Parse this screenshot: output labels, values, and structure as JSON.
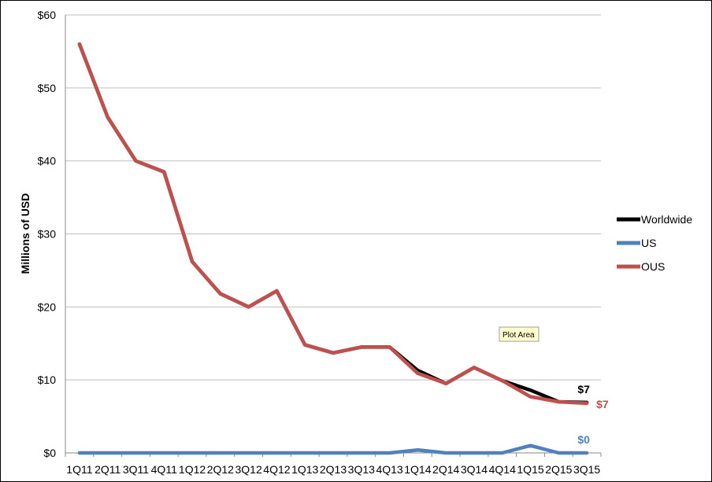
{
  "chart_data": {
    "type": "line",
    "ylabel": "Millions of USD",
    "xlabel": "",
    "ylim": [
      0,
      60
    ],
    "yticks": [
      "$0",
      "$10",
      "$20",
      "$30",
      "$40",
      "$50",
      "$60"
    ],
    "ytick_values": [
      0,
      10,
      20,
      30,
      40,
      50,
      60
    ],
    "grid": true,
    "legend_position": "right",
    "categories": [
      "1Q11",
      "2Q11",
      "3Q11",
      "4Q11",
      "1Q12",
      "2Q12",
      "3Q12",
      "4Q12",
      "1Q13",
      "2Q13",
      "3Q13",
      "4Q13",
      "1Q14",
      "2Q14",
      "3Q14",
      "4Q14",
      "1Q15",
      "2Q15",
      "3Q15"
    ],
    "tick_labels": [
      "1Q11",
      "2Q11",
      "3Q11",
      "4Q11",
      "1Q12",
      "2Q12",
      "3Q12",
      "4Q12",
      "1Q13",
      "2Q13",
      "3Q13",
      "4Q13",
      "1Q14",
      "2Q14",
      "3Q14",
      "4Q14",
      "1Q15",
      "2Q15",
      "3Q15"
    ],
    "series": [
      {
        "name": "Worldwide",
        "color": "#000000",
        "values": [
          56,
          46,
          40,
          38.5,
          26.2,
          21.8,
          20,
          22.2,
          14.8,
          13.7,
          14.5,
          14.5,
          11.3,
          9.5,
          11.7,
          9.9,
          8.6,
          7.0,
          6.9
        ],
        "end_label": "$7"
      },
      {
        "name": "US",
        "color": "#4f81bd",
        "values": [
          0,
          0,
          0,
          0,
          0,
          0,
          0,
          0,
          0,
          0,
          0,
          0,
          0.4,
          0,
          0,
          0,
          1.0,
          0,
          0
        ],
        "end_label": "$0"
      },
      {
        "name": "OUS",
        "color": "#c0504d",
        "values": [
          56,
          46,
          40,
          38.5,
          26.2,
          21.8,
          20,
          22.2,
          14.8,
          13.7,
          14.5,
          14.5,
          10.9,
          9.5,
          11.7,
          9.9,
          7.7,
          7.0,
          6.8
        ],
        "end_label": "$7"
      }
    ],
    "tooltip": "Plot Area"
  }
}
